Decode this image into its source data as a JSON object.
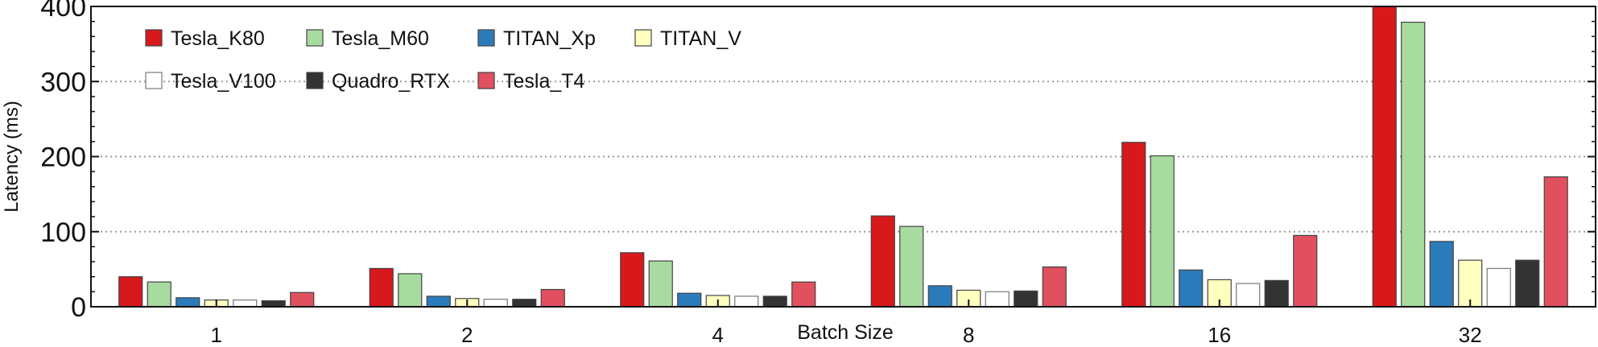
{
  "chart_data": {
    "type": "bar",
    "title": "",
    "xlabel": "Batch Size",
    "ylabel": "Latency (ms)",
    "ylim": [
      0,
      400
    ],
    "yticks": [
      0,
      100,
      200,
      300,
      400
    ],
    "grid": "horizontal dotted",
    "legend_position": "top-left",
    "categories": [
      "1",
      "2",
      "4",
      "8",
      "16",
      "32"
    ],
    "series": [
      {
        "name": "Tesla_K80",
        "color": "#d7191c",
        "values": [
          40,
          51,
          72,
          121,
          219,
          403
        ]
      },
      {
        "name": "Tesla_M60",
        "color": "#a8dba0",
        "values": [
          33,
          44,
          61,
          107,
          201,
          379
        ]
      },
      {
        "name": "TITAN_Xp",
        "color": "#2b7bba",
        "values": [
          12,
          14,
          18,
          28,
          49,
          87
        ]
      },
      {
        "name": "TITAN_V",
        "color": "#ffffbf",
        "values": [
          9,
          11,
          15,
          22,
          36,
          62
        ]
      },
      {
        "name": "Tesla_V100",
        "color": "#ffffff",
        "values": [
          9,
          10,
          14,
          20,
          31,
          51
        ]
      },
      {
        "name": "Quadro_RTX",
        "color": "#333333",
        "values": [
          8,
          10,
          14,
          21,
          35,
          62
        ]
      },
      {
        "name": "Tesla_T4",
        "color": "#e0505e",
        "values": [
          19,
          23,
          33,
          53,
          95,
          173
        ]
      }
    ]
  }
}
